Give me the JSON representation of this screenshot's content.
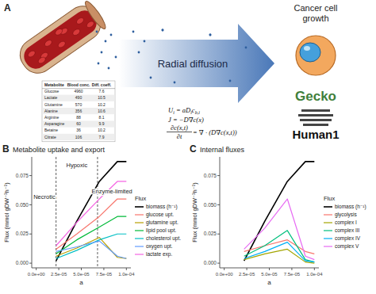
{
  "panel_a": {
    "label": "A",
    "arrow_text": "Radial diffusion",
    "right_title": [
      "Cancer cell",
      "growth"
    ],
    "logos": [
      "Gecko",
      "Human1"
    ],
    "table": {
      "header": [
        "Metabolite",
        "Blood conc.",
        "Diff. coeff."
      ],
      "rows": [
        [
          "Glucose",
          4960,
          7.6
        ],
        [
          "Lactate",
          490,
          10.5
        ],
        [
          "Glutamine",
          570,
          10.2
        ],
        [
          "Alanine",
          356,
          10.6
        ],
        [
          "Arginine",
          88,
          8.1
        ],
        [
          "Asparagine",
          60,
          9.9
        ],
        [
          "Betaine",
          36,
          10.2
        ],
        [
          "Citrate",
          106,
          7.9
        ]
      ]
    },
    "equations": {
      "uptake": [
        {
          "t": "U"
        },
        {
          "sub": "i"
        },
        {
          "t": " = aD"
        },
        {
          "sub": "i"
        },
        {
          "t": "c"
        },
        {
          "sub": "b,i"
        }
      ],
      "flux": [
        {
          "t": "J = −D∇c(x)"
        }
      ],
      "diffusion": {
        "numerator": "∂c(x,t)",
        "denominator": "∂t",
        "rhs": " = ∇ · (D∇c(x,t))"
      }
    }
  },
  "chart_data": [
    {
      "type": "line",
      "label": "B",
      "title": "Metabolite uptake and export",
      "x_label": "a",
      "y_label": "Flux (mmol gDW⁻¹h⁻¹)",
      "legend_title": "Flux",
      "legend": "right",
      "grid": false,
      "x": [
        2.2e-05,
        4.5e-05,
        7e-05,
        9e-05,
        0.0001
      ],
      "series": [
        {
          "name": "biomass (h⁻¹)",
          "color": "#000000",
          "values": [
            0.002,
            0.036,
            0.07,
            0.087,
            0.087
          ]
        },
        {
          "name": "glucose upt.",
          "color": "#F8766D",
          "values": [
            0.012,
            0.025,
            0.04,
            0.055,
            0.055
          ]
        },
        {
          "name": "glutamine upt.",
          "color": "#B79F00",
          "values": [
            0.006,
            0.013,
            0.022,
            0.005,
            0.004
          ]
        },
        {
          "name": "lipid pool upt.",
          "color": "#00BA38",
          "values": [
            0.008,
            0.02,
            0.031,
            0.04,
            0.04
          ]
        },
        {
          "name": "cholesterol upt.",
          "color": "#00BFC4",
          "values": [
            0.004,
            0.011,
            0.02,
            0.025,
            0.025
          ]
        },
        {
          "name": "oxygen upt.",
          "color": "#619CFF",
          "values": [
            0.01,
            0.014,
            0.019,
            0.006,
            0.004
          ]
        },
        {
          "name": "lactate exp.",
          "color": "#F564E3",
          "values": [
            0.015,
            0.035,
            0.055,
            0.07,
            0.07
          ]
        }
      ],
      "xlim": [
        -5e-06,
        0.000105
      ],
      "ylim": [
        -0.004,
        0.091
      ],
      "xticks": [
        {
          "value": 0,
          "label": "0.0e+00"
        },
        {
          "value": 2.5e-05,
          "label": "2.5e-05"
        },
        {
          "value": 5e-05,
          "label": "5.0e-05"
        },
        {
          "value": 7.5e-05,
          "label": "7.5e-05"
        },
        {
          "value": 0.0001,
          "label": "1.0e-04"
        }
      ],
      "yticks": [
        {
          "value": 0,
          "label": "0.000"
        },
        {
          "value": 0.025,
          "label": "0.025"
        },
        {
          "value": 0.05,
          "label": "0.050"
        },
        {
          "value": 0.075,
          "label": "0.075"
        }
      ],
      "vlines": [
        2.2e-05,
        6.8e-05
      ],
      "annotations": [
        {
          "text": "Necrotic",
          "x": 9e-06,
          "y": 0.055
        },
        {
          "text": "Hypoxic",
          "x": 4.5e-05,
          "y": 0.082
        },
        {
          "text": "Enzyme-limited",
          "x": 8.4e-05,
          "y": 0.06
        }
      ]
    },
    {
      "type": "line",
      "label": "C",
      "title": "Internal fluxes",
      "x_label": "a",
      "y_label": "Flux (mmol gDW⁻¹h⁻¹)",
      "legend_title": "Flux",
      "legend": "right",
      "grid": false,
      "x": [
        2.2e-05,
        4.5e-05,
        7e-05,
        9e-05,
        0.0001
      ],
      "series": [
        {
          "name": "biomass (h⁻¹)",
          "color": "#000000",
          "values": [
            0.002,
            0.036,
            0.07,
            0.087,
            0.087
          ]
        },
        {
          "name": "glycolysis",
          "color": "#F8766D",
          "values": [
            0.01,
            0.015,
            0.02,
            0.01,
            0.008
          ]
        },
        {
          "name": "complex I",
          "color": "#A3A500",
          "values": [
            0.003,
            0.008,
            0.012,
            0.001,
            0.0
          ]
        },
        {
          "name": "complex III",
          "color": "#00BF7D",
          "values": [
            0.006,
            0.015,
            0.028,
            0.003,
            0.001
          ]
        },
        {
          "name": "complex IV",
          "color": "#00B0F6",
          "values": [
            0.004,
            0.01,
            0.018,
            0.002,
            0.001
          ]
        },
        {
          "name": "complex V",
          "color": "#E76BF3",
          "values": [
            0.012,
            0.03,
            0.055,
            0.006,
            0.003
          ]
        }
      ],
      "xlim": [
        -5e-06,
        0.000105
      ],
      "ylim": [
        -0.004,
        0.091
      ],
      "xticks": [
        {
          "value": 0,
          "label": "0.0e+00"
        },
        {
          "value": 2.5e-05,
          "label": "2.5e-05"
        },
        {
          "value": 5e-05,
          "label": "5.0e-05"
        },
        {
          "value": 7.5e-05,
          "label": "7.5e-05"
        },
        {
          "value": 0.0001,
          "label": "1.0e-04"
        }
      ],
      "yticks": [
        {
          "value": 0,
          "label": "0.000"
        },
        {
          "value": 0.025,
          "label": "0.025"
        },
        {
          "value": 0.05,
          "label": "0.050"
        },
        {
          "value": 0.075,
          "label": "0.075"
        }
      ]
    }
  ]
}
